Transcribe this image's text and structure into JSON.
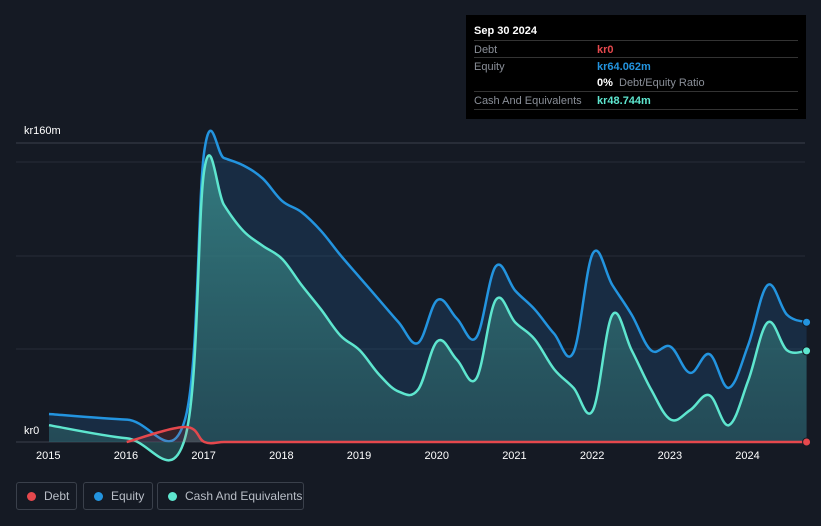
{
  "tooltip": {
    "date": "Sep 30 2024",
    "debt_label": "Debt",
    "debt_value": "kr0",
    "equity_label": "Equity",
    "equity_value": "kr64.062m",
    "ratio_value": "0%",
    "ratio_label": "Debt/Equity Ratio",
    "cash_label": "Cash And Equivalents",
    "cash_value": "kr48.744m"
  },
  "legend": {
    "debt": "Debt",
    "equity": "Equity",
    "cash": "Cash And Equivalents"
  },
  "colors": {
    "debt": "#e5484d",
    "equity": "#2394df",
    "cash": "#5ee6cf"
  },
  "chart_data": {
    "type": "area",
    "y_top_label": "kr160m",
    "y_zero_label": "kr0",
    "ylim": [
      0,
      160
    ],
    "grid": true,
    "legend_position": "bottom-left",
    "x_ticks": [
      "2015",
      "2016",
      "2017",
      "2018",
      "2019",
      "2020",
      "2021",
      "2022",
      "2023",
      "2024"
    ],
    "x": [
      2015,
      2016,
      2016.75,
      2017,
      2017.25,
      2017.5,
      2017.75,
      2018,
      2018.25,
      2018.5,
      2018.75,
      2019,
      2019.25,
      2019.5,
      2019.75,
      2020,
      2020.25,
      2020.5,
      2020.75,
      2021,
      2021.25,
      2021.5,
      2021.75,
      2022,
      2022.25,
      2022.5,
      2022.75,
      2023,
      2023.25,
      2023.5,
      2023.75,
      2024,
      2024.25,
      2024.5,
      2024.75
    ],
    "series": [
      {
        "name": "Debt",
        "values": [
          null,
          0,
          8,
          0,
          0,
          0,
          0,
          0,
          0,
          0,
          0,
          0,
          0,
          0,
          0,
          0,
          0,
          0,
          0,
          0,
          0,
          0,
          0,
          0,
          0,
          0,
          0,
          0,
          0,
          0,
          0,
          0,
          0,
          0,
          0
        ]
      },
      {
        "name": "Equity",
        "values": [
          15,
          12,
          12,
          156,
          152,
          148,
          141,
          129,
          123,
          113,
          100,
          88,
          76,
          64,
          53,
          76,
          66,
          56,
          94,
          81,
          71,
          58,
          48,
          101,
          84,
          68,
          49,
          51,
          37,
          47,
          29,
          52,
          84,
          68,
          64.062
        ]
      },
      {
        "name": "Cash And Equivalents",
        "values": [
          9,
          2,
          2,
          146,
          127,
          113,
          105,
          98,
          84,
          71,
          57,
          49,
          36,
          27,
          28,
          54,
          44,
          34,
          76,
          64,
          55,
          39,
          29,
          17,
          68,
          49,
          28,
          12,
          17,
          25,
          9,
          33,
          64,
          49,
          48.744
        ]
      }
    ]
  }
}
